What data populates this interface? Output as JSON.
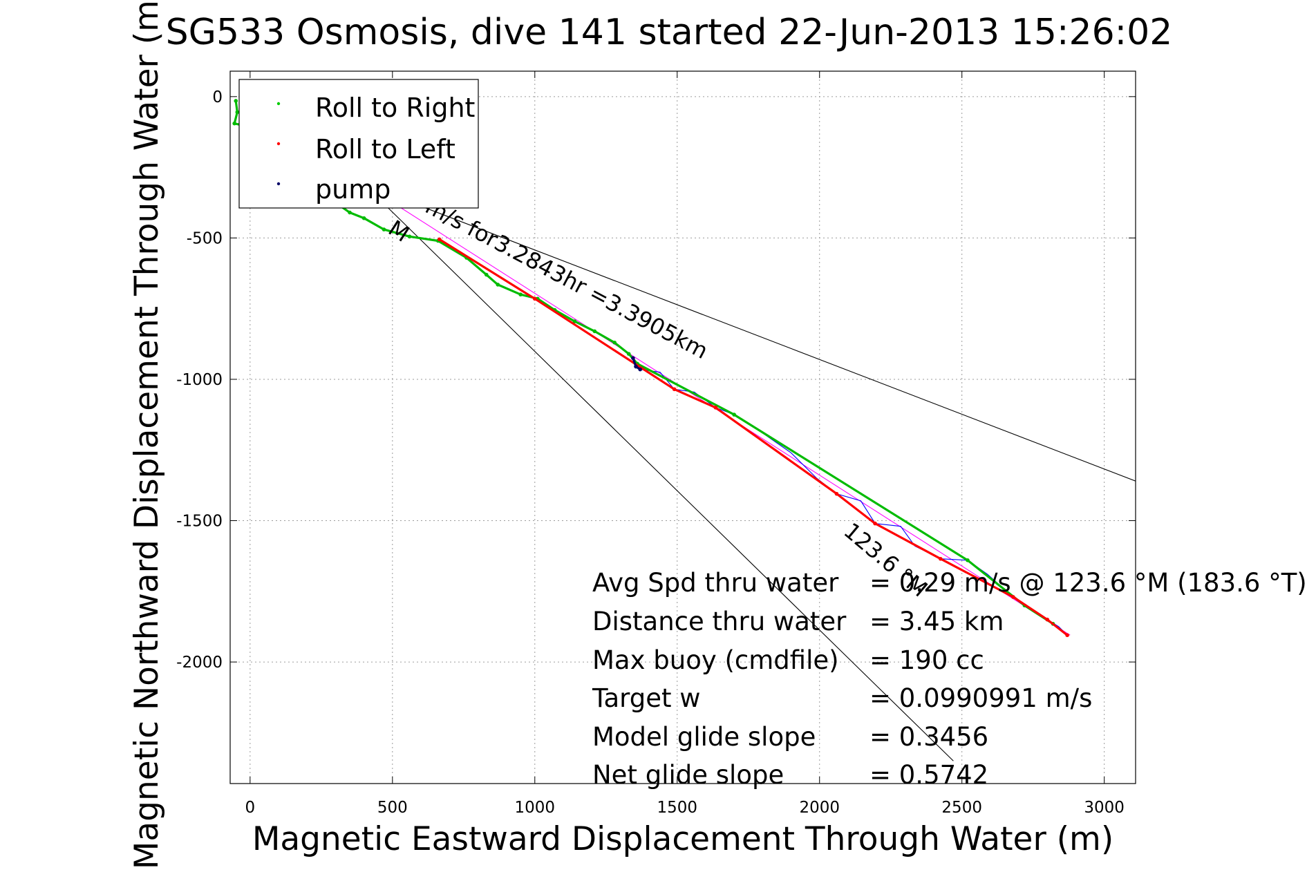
{
  "chart_data": {
    "type": "scatter",
    "title": "SG533 Osmosis, dive 141 started 22-Jun-2013 15:26:02",
    "xlabel": "Magnetic Eastward Displacement Through Water (m)",
    "ylabel": "Magnetic Northward Displacement Through Water (m)",
    "xlim": [
      -70,
      3110
    ],
    "ylim": [
      -2430,
      90
    ],
    "x_ticks": [
      0,
      500,
      1000,
      1500,
      2000,
      2500,
      3000
    ],
    "y_ticks": [
      0,
      -500,
      -1000,
      -1500,
      -2000
    ],
    "grid": true,
    "legend": {
      "position": "top-left",
      "entries": [
        {
          "label": "Roll to Right",
          "color": "#00cc00"
        },
        {
          "label": "Roll to Left",
          "color": "#ff0000"
        },
        {
          "label": "pump",
          "color": "#000066"
        }
      ]
    },
    "series": [
      {
        "name": "Roll to Right",
        "color": "#00bb00",
        "points": [
          [
            -50,
            -15
          ],
          [
            -45,
            -55
          ],
          [
            -55,
            -95
          ],
          [
            -10,
            -105
          ],
          [
            10,
            -120
          ],
          [
            60,
            -160
          ],
          [
            120,
            -215
          ],
          [
            180,
            -265
          ],
          [
            240,
            -320
          ],
          [
            300,
            -375
          ],
          [
            350,
            -410
          ],
          [
            400,
            -430
          ],
          [
            470,
            -470
          ],
          [
            560,
            -495
          ],
          [
            660,
            -510
          ],
          [
            760,
            -570
          ],
          [
            830,
            -630
          ],
          [
            870,
            -665
          ],
          [
            950,
            -700
          ],
          [
            1010,
            -715
          ],
          [
            1070,
            -755
          ],
          [
            1140,
            -795
          ],
          [
            1210,
            -830
          ],
          [
            1280,
            -870
          ],
          [
            1330,
            -910
          ],
          [
            1360,
            -945
          ],
          [
            1700,
            -1125
          ],
          [
            2520,
            -1640
          ],
          [
            2720,
            -1800
          ],
          [
            2820,
            -1865
          ]
        ]
      },
      {
        "name": "Roll to Left",
        "color": "#ff0000",
        "points": [
          [
            665,
            -505
          ],
          [
            1000,
            -715
          ],
          [
            1490,
            -1035
          ],
          [
            1635,
            -1100
          ],
          [
            2060,
            -1405
          ],
          [
            2195,
            -1510
          ],
          [
            2425,
            -1635
          ],
          [
            2680,
            -1770
          ],
          [
            2800,
            -1850
          ],
          [
            2870,
            -1905
          ]
        ]
      },
      {
        "name": "pump",
        "color": "#000066",
        "points": [
          [
            1345,
            -925
          ],
          [
            1355,
            -955
          ],
          [
            1370,
            -965
          ]
        ]
      }
    ],
    "track": {
      "color": "#0000ff",
      "points": [
        [
          1370,
          -965
        ],
        [
          1440,
          -975
        ],
        [
          1490,
          -1035
        ],
        [
          1560,
          -1045
        ],
        [
          1635,
          -1100
        ],
        [
          1700,
          -1125
        ],
        [
          1800,
          -1190
        ],
        [
          1900,
          -1260
        ],
        [
          1990,
          -1350
        ],
        [
          2060,
          -1405
        ],
        [
          2145,
          -1430
        ],
        [
          2195,
          -1510
        ],
        [
          2285,
          -1520
        ],
        [
          2335,
          -1590
        ],
        [
          2425,
          -1635
        ],
        [
          2520,
          -1640
        ],
        [
          2590,
          -1690
        ],
        [
          2680,
          -1770
        ],
        [
          2720,
          -1800
        ],
        [
          2800,
          -1850
        ],
        [
          2840,
          -1875
        ],
        [
          2870,
          -1905
        ]
      ]
    },
    "reference_lines": [
      {
        "color": "#ff00ff",
        "points": [
          [
            400,
            -310
          ],
          [
            2880,
            -1905
          ]
        ]
      },
      {
        "color": "#000000",
        "points": [
          [
            400,
            -310
          ],
          [
            3110,
            -1360
          ]
        ]
      },
      {
        "color": "#000000",
        "points": [
          [
            400,
            -310
          ],
          [
            2470,
            -2350
          ]
        ]
      }
    ],
    "annotations": [
      {
        "text": "m/s for3.2843hr =3.3905km",
        "x": 610,
        "y": -405,
        "angle": 28
      },
      {
        "text": "M",
        "x": 480,
        "y": -480,
        "angle": 33
      },
      {
        "text": "123.6 °M",
        "x": 2080,
        "y": -1545,
        "angle": 40
      }
    ],
    "stats": [
      {
        "label": "Avg Spd thru water",
        "value": "=  0.29 m/s @ 123.6 °M (183.6 °T)"
      },
      {
        "label": "Distance thru water",
        "value": "=  3.45 km"
      },
      {
        "label": "Max buoy (cmdfile)",
        "value": "= 190 cc"
      },
      {
        "label": "Target w",
        "value": "= 0.0990991 m/s"
      },
      {
        "label": "Model glide slope",
        "value": "= 0.3456"
      },
      {
        "label": "Net glide slope",
        "value": "= 0.5742"
      }
    ]
  }
}
